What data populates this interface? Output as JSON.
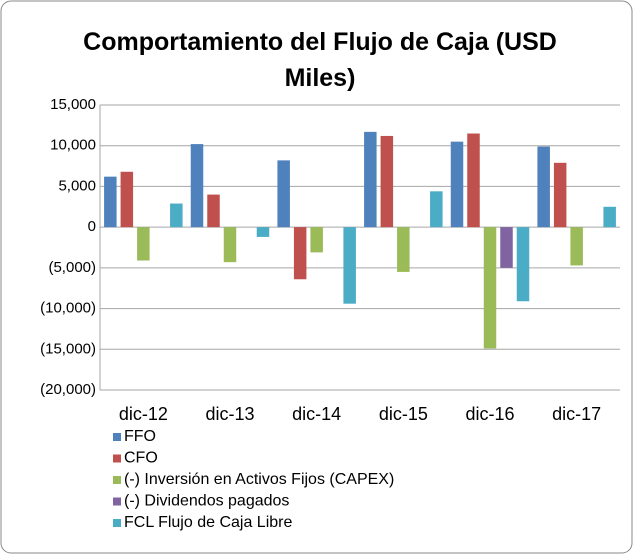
{
  "chart_data": {
    "type": "bar",
    "title": "Comportamiento del Flujo de Caja (USD Miles)",
    "categories": [
      "dic-12",
      "dic-13",
      "dic-14",
      "dic-15",
      "dic-16",
      "dic-17"
    ],
    "series": [
      {
        "name": "FFO",
        "color": "#4f81bd",
        "values": [
          6200,
          10200,
          8200,
          11700,
          10500,
          9900
        ]
      },
      {
        "name": "CFO",
        "color": "#c0504d",
        "values": [
          6800,
          4000,
          -6400,
          11200,
          11500,
          7900
        ]
      },
      {
        "name": "(-) Inversión en Activos Fijos (CAPEX)",
        "color": "#9bbb59",
        "values": [
          -4100,
          -4300,
          -3100,
          -5500,
          -14900,
          -4700
        ]
      },
      {
        "name": "(-) Dividendos pagados",
        "color": "#8064a2",
        "values": [
          null,
          null,
          null,
          null,
          -5000,
          null
        ]
      },
      {
        "name": "FCL Flujo de Caja Libre",
        "color": "#4bacc6",
        "values": [
          2900,
          -1200,
          -9400,
          4400,
          -9100,
          2500
        ]
      }
    ],
    "ylim": [
      -20000,
      15000
    ],
    "yticks": [
      {
        "value": 15000,
        "label": "15,000"
      },
      {
        "value": 10000,
        "label": "10,000"
      },
      {
        "value": 5000,
        "label": "5,000"
      },
      0,
      {
        "value": -5000,
        "label": "(5,000)"
      },
      {
        "value": -10000,
        "label": "(10,000)"
      },
      {
        "value": -15000,
        "label": "(15,000)"
      },
      {
        "value": -20000,
        "label": "(20,000)"
      }
    ],
    "grid": true
  }
}
